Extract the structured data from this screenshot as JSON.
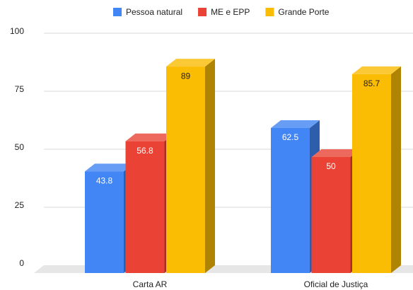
{
  "chart_data": {
    "type": "bar3d",
    "categories": [
      "Carta AR",
      "Oficial de Justiça"
    ],
    "series": [
      {
        "name": "Pessoa natural",
        "color": "#4285f4",
        "values": [
          43.8,
          62.5
        ]
      },
      {
        "name": "ME e EPP",
        "color": "#ea4335",
        "values": [
          56.8,
          50
        ]
      },
      {
        "name": "Grande Porte",
        "color": "#fbbc04",
        "values": [
          89,
          85.7
        ]
      }
    ],
    "ylim": [
      0,
      100
    ],
    "yticks": [
      0,
      25,
      50,
      75,
      100
    ],
    "grid": true,
    "legend": "top"
  }
}
